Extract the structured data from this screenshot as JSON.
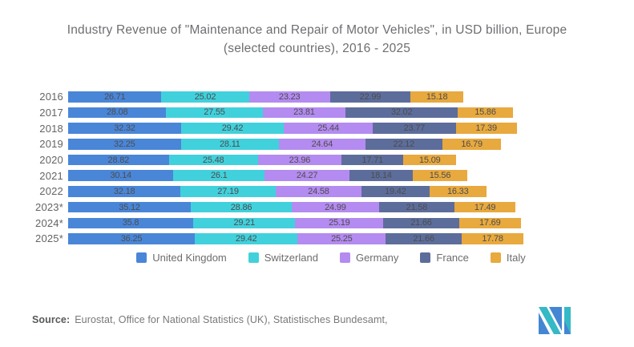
{
  "title": {
    "line1": "Industry Revenue of \"Maintenance and Repair of Motor Vehicles\", in USD billion, Europe",
    "line2": "(selected countries), 2016 - 2025"
  },
  "chart_data": {
    "type": "bar",
    "orientation": "horizontal",
    "stacked": true,
    "value_labels": true,
    "legend_position": "bottom",
    "unit": "USD billion",
    "categories": [
      "2016",
      "2017",
      "2018",
      "2019",
      "2020",
      "2021",
      "2022",
      "2023*",
      "2024*",
      "2025*"
    ],
    "series": [
      {
        "name": "United Kingdom",
        "color": "#4a86d8",
        "values": [
          26.71,
          28.08,
          32.32,
          32.25,
          28.82,
          30.14,
          32.18,
          35.12,
          35.8,
          36.25
        ]
      },
      {
        "name": "Switzerland",
        "color": "#41d1dc",
        "values": [
          25.02,
          27.55,
          29.42,
          28.11,
          25.48,
          26.1,
          27.19,
          28.86,
          29.21,
          29.42
        ]
      },
      {
        "name": "Germany",
        "color": "#b48bf0",
        "values": [
          23.23,
          23.81,
          25.44,
          24.64,
          23.96,
          24.27,
          24.58,
          24.99,
          25.19,
          25.25
        ]
      },
      {
        "name": "France",
        "color": "#5d6d9b",
        "values": [
          22.99,
          32.02,
          23.77,
          22.12,
          17.71,
          18.14,
          19.42,
          21.58,
          21.66,
          21.66
        ]
      },
      {
        "name": "Italy",
        "color": "#e8a93e",
        "values": [
          15.18,
          15.86,
          17.39,
          16.79,
          15.09,
          15.56,
          16.33,
          17.49,
          17.69,
          17.78
        ]
      }
    ]
  },
  "footer": {
    "source_label": "Source:",
    "source_text": "Eurostat, Office for National Statistics (UK), Statistisches Bundesamt,"
  },
  "logo": {
    "name": "mordor-intelligence-logo",
    "teal": "#35b9c6",
    "blue": "#4486d3"
  }
}
